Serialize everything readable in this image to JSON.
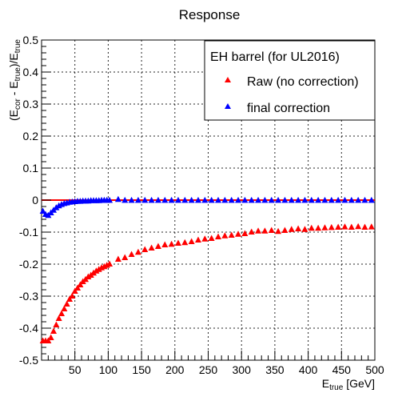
{
  "chart_data": {
    "type": "scatter",
    "title": "Response",
    "xlabel": {
      "base": "E",
      "sub": "true",
      "unit": " [GeV]"
    },
    "ylabel": {
      "text": "(E",
      "sub1": "cor",
      "mid": " - E",
      "sub2": "true",
      "end": ")/E",
      "sub3": "true"
    },
    "xlim": [
      0,
      500
    ],
    "ylim": [
      -0.5,
      0.5
    ],
    "xticks": [
      50,
      100,
      150,
      200,
      250,
      300,
      350,
      400,
      450,
      500
    ],
    "yticks": [
      -0.5,
      -0.4,
      -0.3,
      -0.2,
      -0.1,
      0,
      0.1,
      0.2,
      0.3,
      0.4,
      0.5
    ],
    "grid": true,
    "legend": {
      "position": "top-right",
      "title": "EH barrel (for UL2016)",
      "entries": [
        {
          "label": "Raw (no correction)",
          "color": "#ff0000",
          "marker": "triangle"
        },
        {
          "label": "final correction",
          "color": "#0000ff",
          "marker": "triangle"
        }
      ]
    },
    "reference_line": {
      "y": 0,
      "color": "#ff0000"
    },
    "series": [
      {
        "name": "Raw (no correction)",
        "color": "#ff0000",
        "x": [
          2,
          6,
          10,
          14,
          18,
          22,
          26,
          30,
          34,
          38,
          42,
          46,
          50,
          54,
          58,
          62,
          66,
          70,
          74,
          78,
          82,
          86,
          90,
          94,
          98,
          102,
          115,
          125,
          135,
          145,
          155,
          165,
          175,
          185,
          195,
          205,
          215,
          225,
          235,
          245,
          255,
          265,
          275,
          285,
          295,
          305,
          315,
          325,
          335,
          345,
          355,
          365,
          375,
          385,
          395,
          405,
          415,
          425,
          435,
          445,
          455,
          465,
          475,
          485,
          495
        ],
        "y": [
          -0.44,
          -0.44,
          -0.44,
          -0.43,
          -0.41,
          -0.39,
          -0.37,
          -0.355,
          -0.34,
          -0.325,
          -0.31,
          -0.3,
          -0.285,
          -0.275,
          -0.265,
          -0.255,
          -0.248,
          -0.24,
          -0.235,
          -0.228,
          -0.222,
          -0.217,
          -0.212,
          -0.208,
          -0.204,
          -0.2,
          -0.185,
          -0.18,
          -0.17,
          -0.163,
          -0.155,
          -0.15,
          -0.145,
          -0.14,
          -0.138,
          -0.135,
          -0.133,
          -0.13,
          -0.125,
          -0.122,
          -0.12,
          -0.115,
          -0.112,
          -0.11,
          -0.107,
          -0.105,
          -0.1,
          -0.097,
          -0.097,
          -0.095,
          -0.098,
          -0.095,
          -0.092,
          -0.09,
          -0.092,
          -0.088,
          -0.088,
          -0.087,
          -0.086,
          -0.085,
          -0.084,
          -0.085,
          -0.083,
          -0.085,
          -0.084
        ]
      },
      {
        "name": "final correction",
        "color": "#0000ff",
        "x": [
          2,
          6,
          10,
          14,
          18,
          22,
          26,
          30,
          34,
          38,
          42,
          46,
          50,
          54,
          58,
          62,
          66,
          70,
          74,
          78,
          82,
          86,
          90,
          94,
          98,
          102,
          115,
          125,
          135,
          145,
          155,
          165,
          175,
          185,
          195,
          205,
          215,
          225,
          235,
          245,
          255,
          265,
          275,
          285,
          295,
          305,
          315,
          325,
          335,
          345,
          355,
          365,
          375,
          385,
          395,
          405,
          415,
          425,
          435,
          445,
          455,
          465,
          475,
          485,
          495
        ],
        "y": [
          -0.035,
          -0.045,
          -0.048,
          -0.04,
          -0.032,
          -0.024,
          -0.018,
          -0.014,
          -0.011,
          -0.009,
          -0.007,
          -0.006,
          -0.005,
          -0.004,
          -0.004,
          -0.003,
          -0.003,
          -0.003,
          -0.002,
          -0.002,
          -0.002,
          -0.002,
          -0.001,
          -0.001,
          -0.001,
          -0.001,
          0.002,
          -0.001,
          -0.001,
          -0.001,
          -0.001,
          -0.001,
          -0.001,
          -0.001,
          -0.001,
          -0.001,
          -0.001,
          -0.001,
          -0.001,
          -0.001,
          -0.001,
          -0.001,
          -0.001,
          -0.001,
          -0.001,
          -0.001,
          -0.001,
          -0.001,
          -0.001,
          -0.001,
          -0.001,
          -0.001,
          -0.001,
          -0.001,
          -0.001,
          -0.001,
          -0.001,
          -0.001,
          -0.001,
          -0.001,
          -0.001,
          -0.001,
          -0.001,
          -0.001,
          -0.001
        ]
      }
    ]
  }
}
